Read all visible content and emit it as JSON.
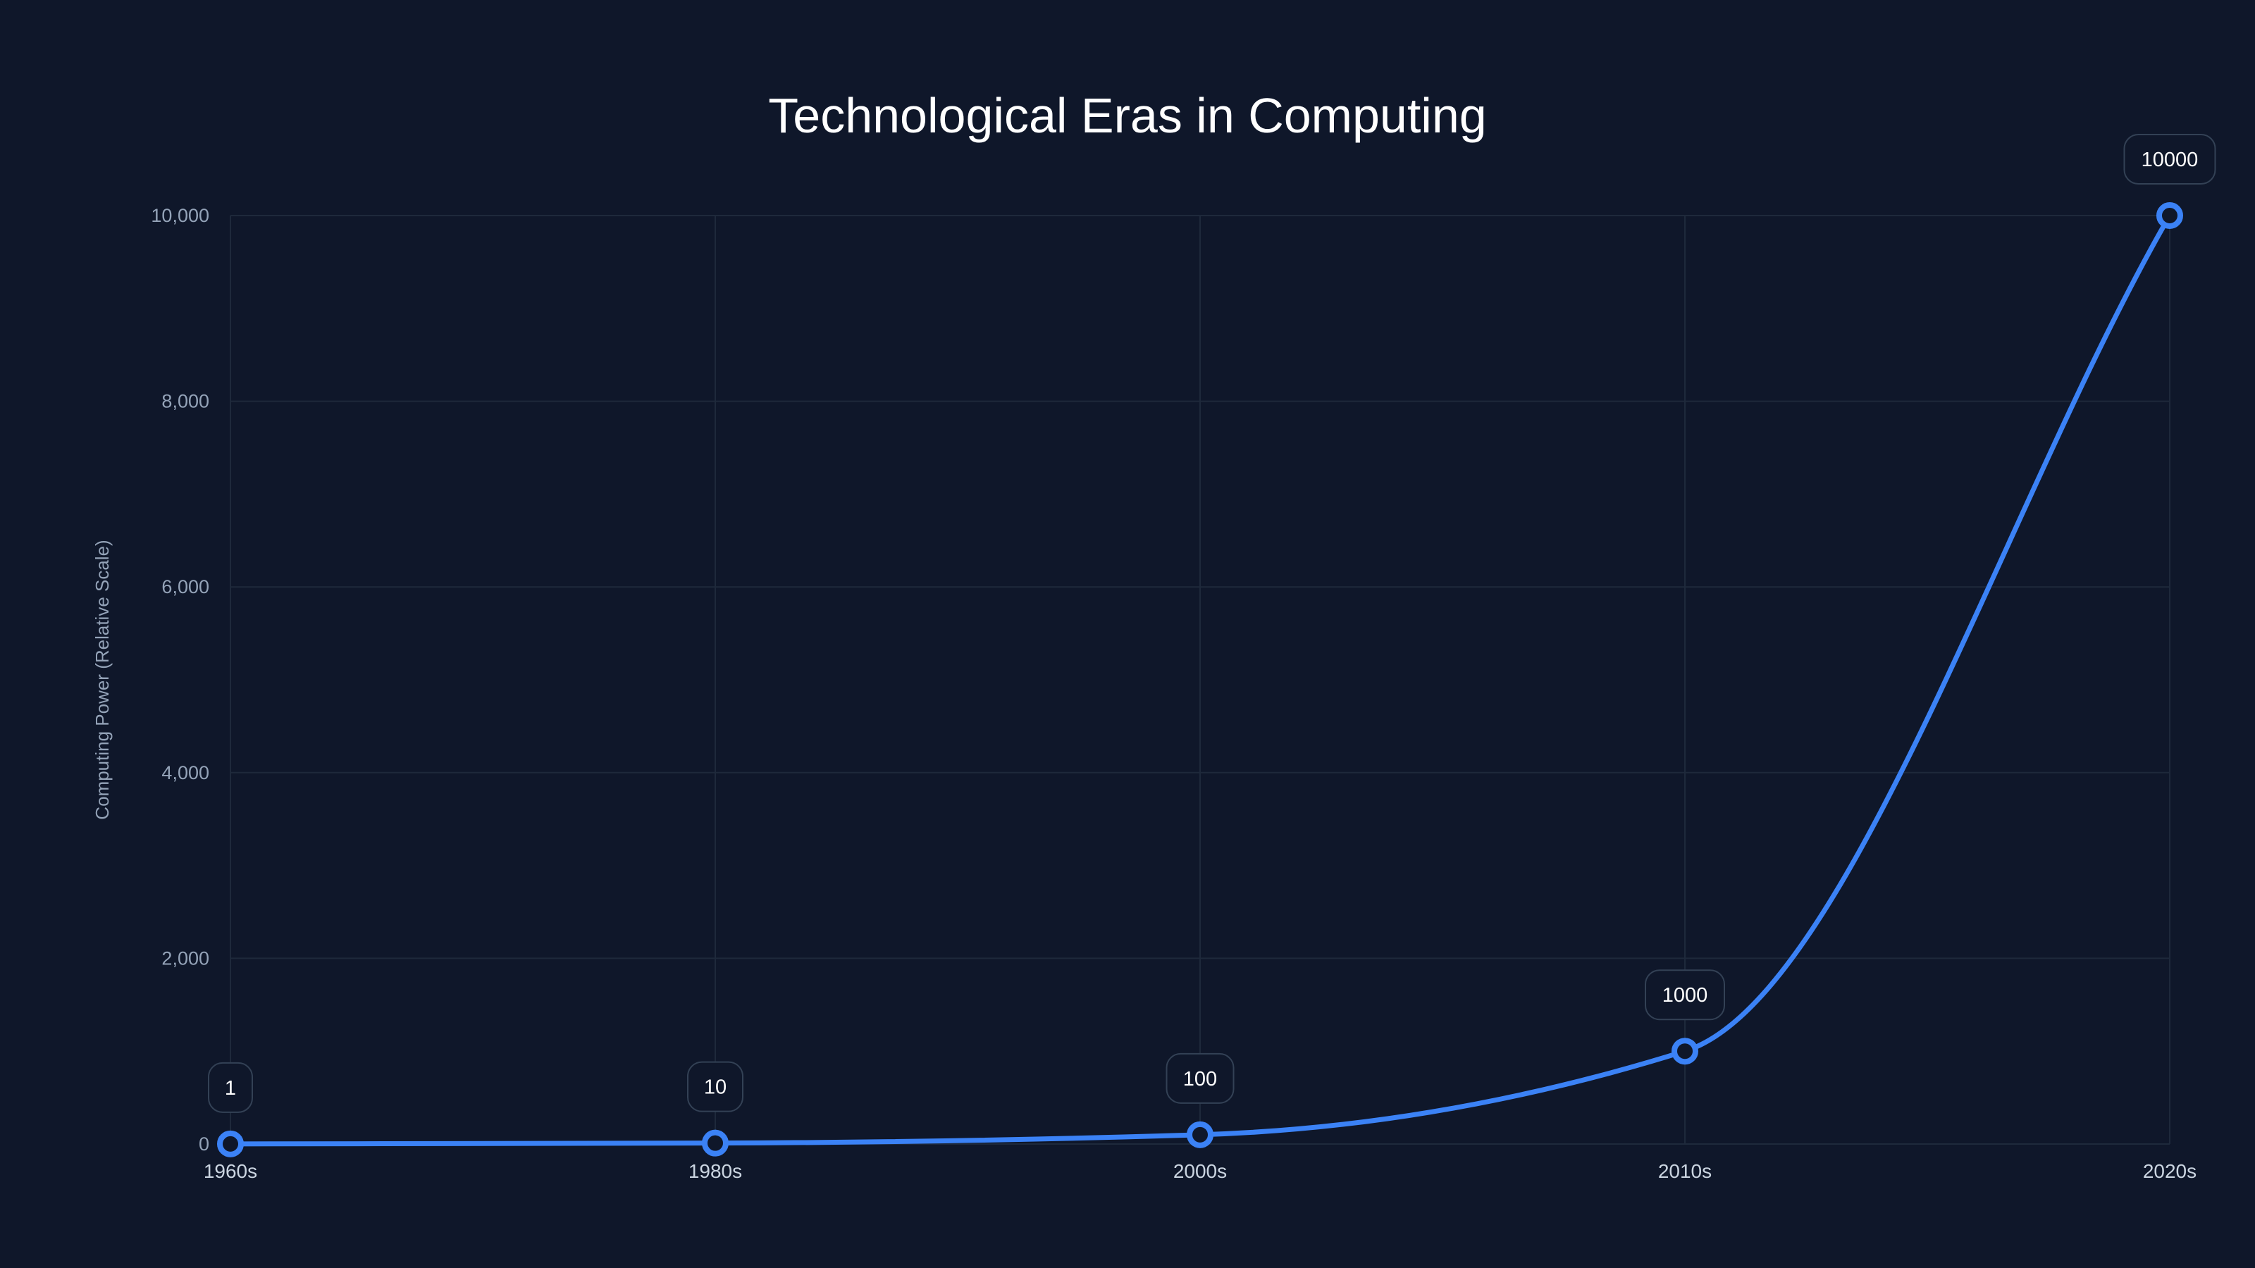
{
  "chart_data": {
    "type": "line",
    "title": "Technological Eras in Computing",
    "xlabel": "",
    "ylabel": "Computing Power (Relative Scale)",
    "categories": [
      "1960s",
      "1980s",
      "2000s",
      "2010s",
      "2020s"
    ],
    "values": [
      1,
      10,
      100,
      1000,
      10000
    ],
    "data_labels": [
      "1",
      "10",
      "100",
      "1000",
      "10000"
    ],
    "ylim": [
      0,
      10000
    ],
    "yticks": [
      0,
      2000,
      4000,
      6000,
      8000,
      10000
    ],
    "ytick_labels": [
      "0",
      "2,000",
      "4,000",
      "6,000",
      "8,000",
      "10,000"
    ],
    "grid": true,
    "smooth": true,
    "colors": {
      "background": "#0f172a",
      "line": "#3b82f6",
      "grid": "#1e293b",
      "label_border": "#334155"
    }
  }
}
